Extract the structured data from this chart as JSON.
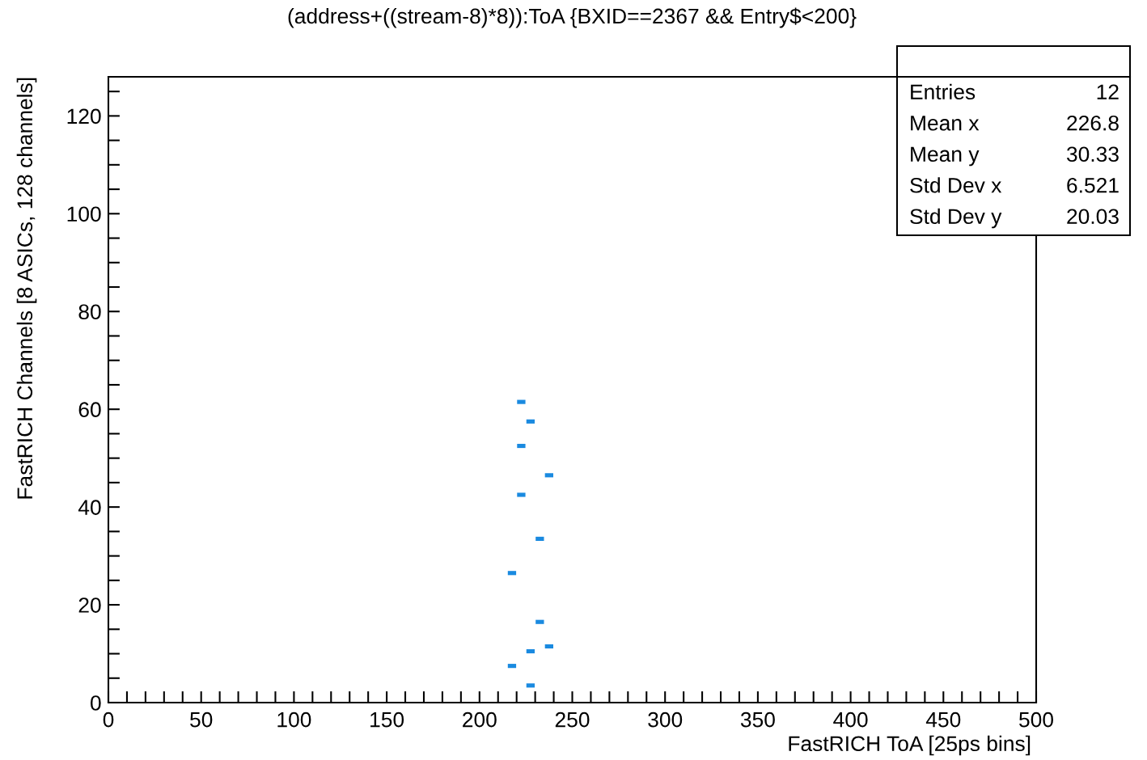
{
  "chart_data": {
    "type": "scatter",
    "title": "(address+((stream-8)*8)):ToA {BXID==2367 && Entry$<200}",
    "xlabel": "FastRICH ToA [25ps bins]",
    "ylabel": "FastRICH Channels [8 ASICs, 128 channels]",
    "series": [
      {
        "color": "#1a8ae0",
        "x": [
          222.5,
          227.5,
          222.5,
          237.5,
          222.5,
          232.5,
          217.5,
          232.5,
          237.5,
          227.5,
          217.5,
          227.5
        ],
        "values": [
          61.5,
          57.5,
          52.5,
          46.5,
          42.5,
          33.5,
          26.5,
          16.5,
          11.5,
          10.5,
          7.5,
          3.5
        ]
      }
    ],
    "xlim": [
      0,
      500
    ],
    "ylim": [
      0,
      128
    ],
    "xticks": [
      0,
      {
        "value": 10,
        "label": null
      },
      {
        "value": 20,
        "label": null
      },
      {
        "value": 30,
        "label": null
      },
      {
        "value": 40,
        "label": null
      },
      50,
      {
        "value": 60,
        "label": null
      },
      {
        "value": 70,
        "label": null
      },
      {
        "value": 80,
        "label": null
      },
      {
        "value": 90,
        "label": null
      },
      100,
      {
        "value": 110,
        "label": null
      },
      {
        "value": 120,
        "label": null
      },
      {
        "value": 130,
        "label": null
      },
      {
        "value": 140,
        "label": null
      },
      150,
      {
        "value": 160,
        "label": null
      },
      {
        "value": 170,
        "label": null
      },
      {
        "value": 180,
        "label": null
      },
      {
        "value": 190,
        "label": null
      },
      200,
      {
        "value": 210,
        "label": null
      },
      {
        "value": 220,
        "label": null
      },
      {
        "value": 230,
        "label": null
      },
      {
        "value": 240,
        "label": null
      },
      250,
      {
        "value": 260,
        "label": null
      },
      {
        "value": 270,
        "label": null
      },
      {
        "value": 280,
        "label": null
      },
      {
        "value": 290,
        "label": null
      },
      300,
      {
        "value": 310,
        "label": null
      },
      {
        "value": 320,
        "label": null
      },
      {
        "value": 330,
        "label": null
      },
      {
        "value": 340,
        "label": null
      },
      350,
      {
        "value": 360,
        "label": null
      },
      {
        "value": 370,
        "label": null
      },
      {
        "value": 380,
        "label": null
      },
      {
        "value": 390,
        "label": null
      },
      400,
      {
        "value": 410,
        "label": null
      },
      {
        "value": 420,
        "label": null
      },
      {
        "value": 430,
        "label": null
      },
      {
        "value": 440,
        "label": null
      },
      450,
      {
        "value": 460,
        "label": null
      },
      {
        "value": 470,
        "label": null
      },
      {
        "value": 480,
        "label": null
      },
      {
        "value": 490,
        "label": null
      },
      500
    ],
    "yticks": [
      0,
      {
        "value": 5,
        "label": null
      },
      {
        "value": 10,
        "label": null
      },
      {
        "value": 15,
        "label": null
      },
      20,
      {
        "value": 25,
        "label": null
      },
      {
        "value": 30,
        "label": null
      },
      {
        "value": 35,
        "label": null
      },
      40,
      {
        "value": 45,
        "label": null
      },
      {
        "value": 50,
        "label": null
      },
      {
        "value": 55,
        "label": null
      },
      60,
      {
        "value": 65,
        "label": null
      },
      {
        "value": 70,
        "label": null
      },
      {
        "value": 75,
        "label": null
      },
      80,
      {
        "value": 85,
        "label": null
      },
      {
        "value": 90,
        "label": null
      },
      {
        "value": 95,
        "label": null
      },
      100,
      {
        "value": 105,
        "label": null
      },
      {
        "value": 110,
        "label": null
      },
      {
        "value": 115,
        "label": null
      },
      120,
      {
        "value": 125,
        "label": null
      }
    ],
    "annotations": [
      "Entries",
      "12",
      "Mean x",
      "226.8",
      "Mean y",
      "30.33",
      "Std Dev x",
      "6.521",
      "Std Dev y",
      "20.03"
    ],
    "grid": false
  }
}
